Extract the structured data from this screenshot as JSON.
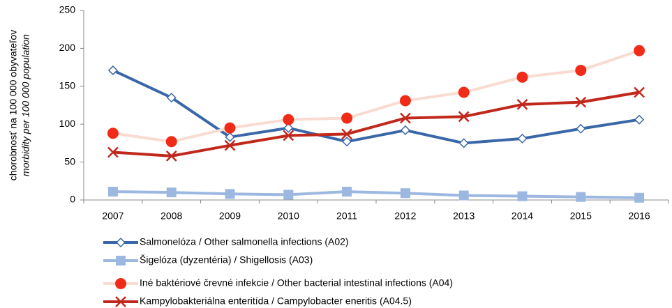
{
  "chart_data": {
    "type": "line",
    "ylabel": [
      "chorobnosť na 100 000 obyvateľov",
      "morbidity per 100 000 population"
    ],
    "categories": [
      "2007",
      "2008",
      "2009",
      "2010",
      "2011",
      "2012",
      "2013",
      "2014",
      "2015",
      "2016"
    ],
    "ylim": [
      0,
      250
    ],
    "yticks": [
      0,
      50,
      100,
      150,
      200,
      250
    ],
    "grid": false,
    "series": [
      {
        "name": "Salmonelóza / Other salmonella infections (A02)",
        "color": "#3a67a8",
        "marker": "diamond",
        "marker_color": "#3a67a8",
        "values": [
          171,
          135,
          83,
          95,
          77,
          92,
          75,
          81,
          94,
          106
        ]
      },
      {
        "name": "Šigelóza (dyzentéria) / Shigellosis (A03)",
        "color": "#9db8e0",
        "marker": "square",
        "marker_color": "#9db8e0",
        "values": [
          11,
          10,
          8,
          7,
          11,
          9,
          6,
          5,
          4,
          3
        ]
      },
      {
        "name": "Iné baktériové črevné infekcie / Other bacterial intestinal infections (A04)",
        "color": "#f8dcd2",
        "marker": "circle",
        "marker_color": "#f02b17",
        "values": [
          88,
          77,
          95,
          106,
          108,
          131,
          142,
          162,
          171,
          197
        ]
      },
      {
        "name": "Kampylobakteriálna enteritída / Campylobacter eneritis (A04.5)",
        "color": "#c0281c",
        "marker": "x",
        "marker_color": "#c0281c",
        "values": [
          63,
          58,
          72,
          85,
          87,
          108,
          110,
          126,
          129,
          142
        ]
      }
    ]
  }
}
